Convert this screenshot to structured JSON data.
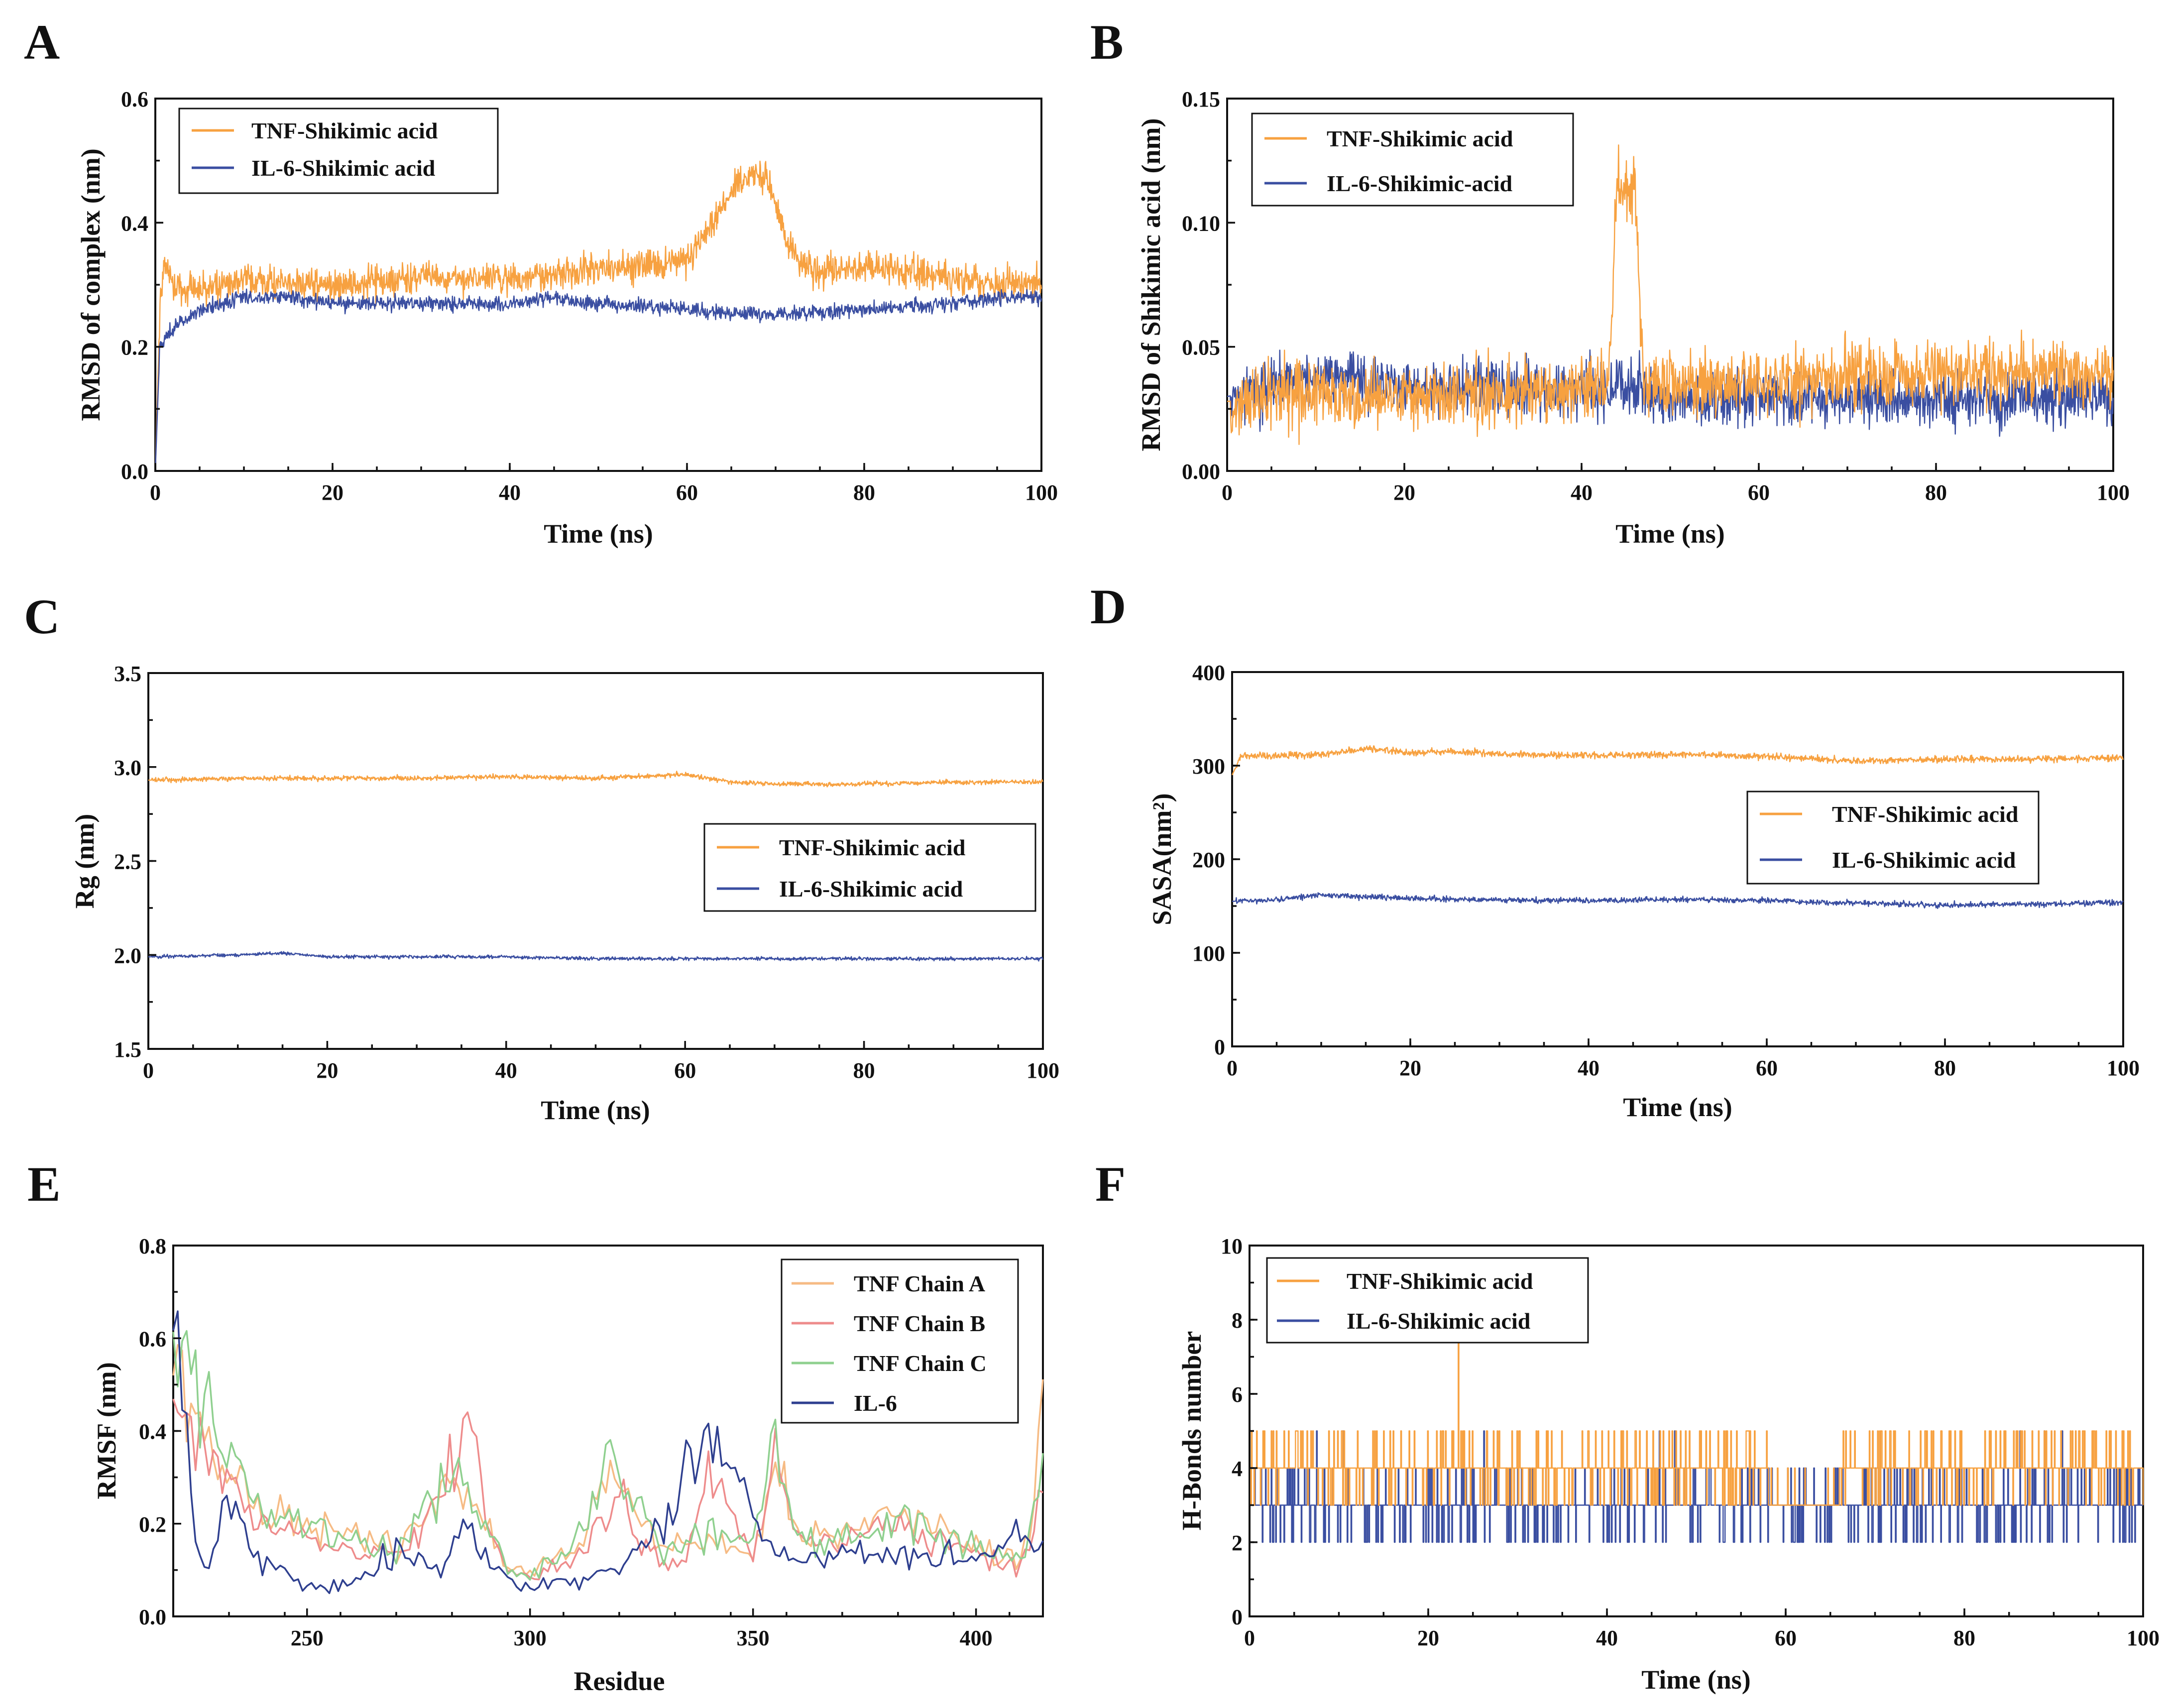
{
  "figure": {
    "title": ""
  },
  "chart_data": [
    {
      "panel": "A",
      "type": "line",
      "xlabel": "Time (ns)",
      "ylabel": "RMSD of complex (nm)",
      "xlim": [
        0,
        100
      ],
      "ylim": [
        0.0,
        0.6
      ],
      "xticks": [
        "0",
        "20",
        "40",
        "60",
        "80",
        "100"
      ],
      "yticks": [
        "0.0",
        "0.2",
        "0.4",
        "0.6"
      ],
      "legend_position": "top-left",
      "series": [
        {
          "name": "TNF-Shikimic acid",
          "color": "#F7A140",
          "x": [
            0,
            0.5,
            1,
            2,
            5,
            10,
            15,
            20,
            30,
            40,
            50,
            55,
            60,
            63,
            65,
            67,
            69,
            71,
            73,
            75,
            80,
            85,
            90,
            95,
            100
          ],
          "values": [
            0.0,
            0.25,
            0.34,
            0.3,
            0.29,
            0.31,
            0.3,
            0.3,
            0.31,
            0.31,
            0.33,
            0.33,
            0.34,
            0.4,
            0.45,
            0.48,
            0.47,
            0.38,
            0.33,
            0.32,
            0.33,
            0.32,
            0.31,
            0.3,
            0.3
          ],
          "noise": 0.025
        },
        {
          "name": "IL-6-Shikimic acid",
          "color": "#3A4EA1",
          "x": [
            0,
            0.5,
            1,
            2,
            5,
            10,
            15,
            20,
            30,
            40,
            45,
            50,
            60,
            70,
            80,
            90,
            95,
            100
          ],
          "values": [
            0.0,
            0.2,
            0.21,
            0.23,
            0.26,
            0.28,
            0.28,
            0.27,
            0.27,
            0.27,
            0.28,
            0.27,
            0.26,
            0.25,
            0.26,
            0.27,
            0.28,
            0.28
          ],
          "noise": 0.012
        }
      ]
    },
    {
      "panel": "B",
      "type": "line",
      "xlabel": "Time (ns)",
      "ylabel": "RMSD of Shikimic acid (nm)",
      "xlim": [
        0,
        100
      ],
      "ylim": [
        0.0,
        0.15
      ],
      "xticks": [
        "0",
        "20",
        "40",
        "60",
        "80",
        "100"
      ],
      "yticks": [
        "0.00",
        "0.05",
        "0.10",
        "0.15"
      ],
      "legend_position": "top-left",
      "series": [
        {
          "name": "IL-6-Shikimic-acid",
          "color": "#3A4EA1",
          "x": [
            0,
            5,
            10,
            20,
            30,
            40,
            45,
            50,
            60,
            70,
            80,
            90,
            100
          ],
          "values": [
            0.03,
            0.033,
            0.038,
            0.034,
            0.033,
            0.032,
            0.034,
            0.029,
            0.029,
            0.029,
            0.029,
            0.029,
            0.03
          ],
          "noise": 0.011
        },
        {
          "name": "TNF-Shikimic acid",
          "color": "#F7A140",
          "x": [
            0,
            5,
            10,
            20,
            30,
            40,
            43,
            44,
            46,
            47,
            50,
            60,
            70,
            80,
            90,
            100
          ],
          "values": [
            0.028,
            0.03,
            0.031,
            0.03,
            0.031,
            0.032,
            0.034,
            0.115,
            0.115,
            0.035,
            0.034,
            0.036,
            0.038,
            0.04,
            0.04,
            0.04
          ],
          "noise": 0.013
        }
      ]
    },
    {
      "panel": "C",
      "type": "line",
      "xlabel": "Time (ns)",
      "ylabel": "Rg (nm)",
      "xlim": [
        0,
        100
      ],
      "ylim": [
        1.5,
        3.5
      ],
      "xticks": [
        "0",
        "20",
        "40",
        "60",
        "80",
        "100"
      ],
      "yticks": [
        "1.5",
        "2.0",
        "2.5",
        "3.0",
        "3.5"
      ],
      "legend_position": "middle-right",
      "series": [
        {
          "name": "TNF-Shikimic acid",
          "color": "#F7A140",
          "x": [
            0,
            10,
            20,
            30,
            40,
            50,
            60,
            65,
            70,
            80,
            90,
            100
          ],
          "values": [
            2.93,
            2.94,
            2.94,
            2.94,
            2.95,
            2.94,
            2.96,
            2.92,
            2.91,
            2.91,
            2.92,
            2.92
          ],
          "noise": 0.012
        },
        {
          "name": "IL-6-Shikimic acid",
          "color": "#3A4EA1",
          "x": [
            0,
            10,
            15,
            20,
            30,
            40,
            50,
            60,
            70,
            80,
            90,
            100
          ],
          "values": [
            1.99,
            2.0,
            2.01,
            1.99,
            1.99,
            1.99,
            1.98,
            1.98,
            1.98,
            1.98,
            1.98,
            1.98
          ],
          "noise": 0.009
        }
      ]
    },
    {
      "panel": "D",
      "type": "line",
      "xlabel": "Time (ns)",
      "ylabel": "SASA(nm²)",
      "xlim": [
        0,
        100
      ],
      "ylim": [
        0,
        400
      ],
      "xticks": [
        "0",
        "20",
        "40",
        "60",
        "80",
        "100"
      ],
      "yticks": [
        "0",
        "100",
        "200",
        "300",
        "400"
      ],
      "legend_position": "middle-right",
      "series": [
        {
          "name": "TNF-Shikimic acid",
          "color": "#F7A140",
          "x": [
            0,
            1,
            10,
            15,
            20,
            25,
            30,
            40,
            50,
            60,
            70,
            80,
            90,
            100
          ],
          "values": [
            290,
            310,
            312,
            318,
            314,
            315,
            312,
            311,
            312,
            310,
            305,
            307,
            307,
            308
          ],
          "noise": 3.5
        },
        {
          "name": "IL-6-Shikimic acid",
          "color": "#3A4EA1",
          "x": [
            0,
            5,
            10,
            15,
            20,
            30,
            40,
            50,
            60,
            70,
            80,
            90,
            100
          ],
          "values": [
            155,
            157,
            162,
            160,
            158,
            156,
            156,
            157,
            156,
            153,
            151,
            152,
            154
          ],
          "noise": 2.8
        }
      ]
    },
    {
      "panel": "E",
      "type": "line",
      "xlabel": "Residue",
      "ylabel": "RMSF (nm)",
      "xlim": [
        220,
        415
      ],
      "ylim": [
        0.0,
        0.8
      ],
      "xticks": [
        "250",
        "300",
        "350",
        "400"
      ],
      "xtick_values": [
        250,
        300,
        350,
        400
      ],
      "yticks": [
        "0.0",
        "0.2",
        "0.4",
        "0.6",
        "0.8"
      ],
      "legend_position": "top-right",
      "series": [
        {
          "name": "TNF Chain A",
          "color": "#F6BB84",
          "x": [
            220,
            225,
            230,
            240,
            250,
            260,
            270,
            280,
            285,
            290,
            295,
            300,
            310,
            318,
            325,
            330,
            340,
            350,
            355,
            360,
            370,
            380,
            390,
            400,
            410,
            413,
            415
          ],
          "values": [
            0.62,
            0.45,
            0.33,
            0.22,
            0.2,
            0.17,
            0.15,
            0.28,
            0.25,
            0.2,
            0.1,
            0.1,
            0.14,
            0.3,
            0.2,
            0.15,
            0.17,
            0.14,
            0.33,
            0.17,
            0.18,
            0.22,
            0.19,
            0.15,
            0.12,
            0.2,
            0.53
          ]
        },
        {
          "name": "TNF Chain B",
          "color": "#EE8C8C",
          "x": [
            220,
            225,
            230,
            240,
            250,
            260,
            270,
            280,
            287,
            290,
            295,
            300,
            310,
            320,
            325,
            330,
            335,
            340,
            350,
            355,
            360,
            370,
            380,
            390,
            400,
            410,
            415
          ],
          "values": [
            0.55,
            0.42,
            0.3,
            0.2,
            0.17,
            0.14,
            0.13,
            0.25,
            0.43,
            0.2,
            0.09,
            0.09,
            0.12,
            0.28,
            0.15,
            0.12,
            0.13,
            0.3,
            0.13,
            0.35,
            0.16,
            0.16,
            0.2,
            0.17,
            0.14,
            0.1,
            0.25
          ]
        },
        {
          "name": "TNF Chain C",
          "color": "#8FD08F",
          "x": [
            220,
            225,
            230,
            240,
            250,
            260,
            270,
            280,
            285,
            290,
            295,
            300,
            310,
            318,
            325,
            330,
            340,
            350,
            355,
            360,
            370,
            380,
            390,
            400,
            410,
            415
          ],
          "values": [
            0.58,
            0.52,
            0.36,
            0.24,
            0.19,
            0.16,
            0.14,
            0.27,
            0.3,
            0.22,
            0.1,
            0.09,
            0.15,
            0.33,
            0.22,
            0.14,
            0.18,
            0.15,
            0.38,
            0.18,
            0.17,
            0.2,
            0.18,
            0.15,
            0.11,
            0.3
          ]
        },
        {
          "name": "IL-6",
          "color": "#2E3F8F",
          "x": [
            220,
            222,
            225,
            228,
            232,
            240,
            250,
            260,
            270,
            280,
            286,
            290,
            300,
            310,
            320,
            330,
            335,
            340,
            345,
            350,
            355,
            360,
            370,
            380,
            390,
            400,
            405,
            410,
            415
          ],
          "values": [
            0.7,
            0.5,
            0.15,
            0.1,
            0.27,
            0.12,
            0.06,
            0.07,
            0.15,
            0.1,
            0.2,
            0.12,
            0.06,
            0.08,
            0.1,
            0.2,
            0.33,
            0.38,
            0.3,
            0.22,
            0.15,
            0.12,
            0.14,
            0.13,
            0.14,
            0.12,
            0.15,
            0.18,
            0.15
          ]
        }
      ]
    },
    {
      "panel": "F",
      "type": "line",
      "xlabel": "Time (ns)",
      "ylabel": "H-Bonds number",
      "xlim": [
        0,
        100
      ],
      "ylim": [
        0,
        10
      ],
      "xticks": [
        "0",
        "20",
        "40",
        "60",
        "80",
        "100"
      ],
      "yticks": [
        "0",
        "2",
        "4",
        "6",
        "8",
        "10"
      ],
      "legend_position": "top-left",
      "series": [
        {
          "name": "IL-6-Shikimic acid",
          "color": "#3A4EA1",
          "x": [
            0,
            100
          ],
          "values": [
            3,
            3
          ],
          "discrete": true,
          "range": [
            1,
            5
          ]
        },
        {
          "name": "TNF-Shikimic acid",
          "color": "#F7A140",
          "x": [
            0,
            100
          ],
          "values": [
            4,
            4
          ],
          "discrete": true,
          "range": [
            2,
            7
          ]
        }
      ]
    }
  ]
}
